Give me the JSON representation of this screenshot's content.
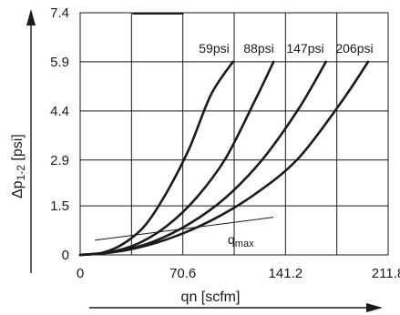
{
  "chart_data": {
    "type": "line",
    "xlabel": "qn [scfm]",
    "ylabel": "Δp1-2 [psi]",
    "ylabel_main": "Δp",
    "ylabel_sub": "1-2",
    "ylabel_unit": " [psi]",
    "xlim": [
      0,
      211.8
    ],
    "ylim": [
      0,
      7.4
    ],
    "x_ticks": [
      0,
      70.6,
      141.2,
      211.8
    ],
    "x_tick_labels": [
      "0",
      "70.6",
      "141.2",
      "211.8"
    ],
    "y_ticks": [
      0,
      1.5,
      2.9,
      4.4,
      5.9,
      7.4
    ],
    "y_tick_labels": [
      "0",
      "1.5",
      "2.9",
      "4.4",
      "5.9",
      "7.4"
    ],
    "grid": true,
    "series": [
      {
        "name": "59psi",
        "x": [
          0,
          15,
          30,
          45,
          60,
          75,
          90,
          105
        ],
        "y": [
          0,
          0.06,
          0.35,
          0.92,
          1.95,
          3.25,
          4.9,
          5.9
        ]
      },
      {
        "name": "88psi",
        "x": [
          0,
          20,
          40,
          60,
          80,
          100,
          120,
          133
        ],
        "y": [
          0,
          0.08,
          0.35,
          0.9,
          1.75,
          2.95,
          4.7,
          5.9
        ]
      },
      {
        "name": "147psi",
        "x": [
          0,
          25,
          50,
          75,
          100,
          125,
          150,
          169
        ],
        "y": [
          0,
          0.1,
          0.4,
          0.95,
          1.75,
          2.9,
          4.45,
          5.9
        ]
      },
      {
        "name": "206psi",
        "x": [
          0,
          30,
          60,
          90,
          120,
          150,
          180,
          198
        ],
        "y": [
          0,
          0.13,
          0.48,
          1.05,
          1.85,
          2.95,
          4.7,
          5.9
        ]
      }
    ],
    "qmax": {
      "label_main": "q",
      "label_sub": "max",
      "x": [
        10,
        133
      ],
      "y": [
        0.45,
        1.15
      ]
    },
    "max_marker": {
      "x": [
        36,
        71
      ],
      "y": 7.4
    }
  }
}
